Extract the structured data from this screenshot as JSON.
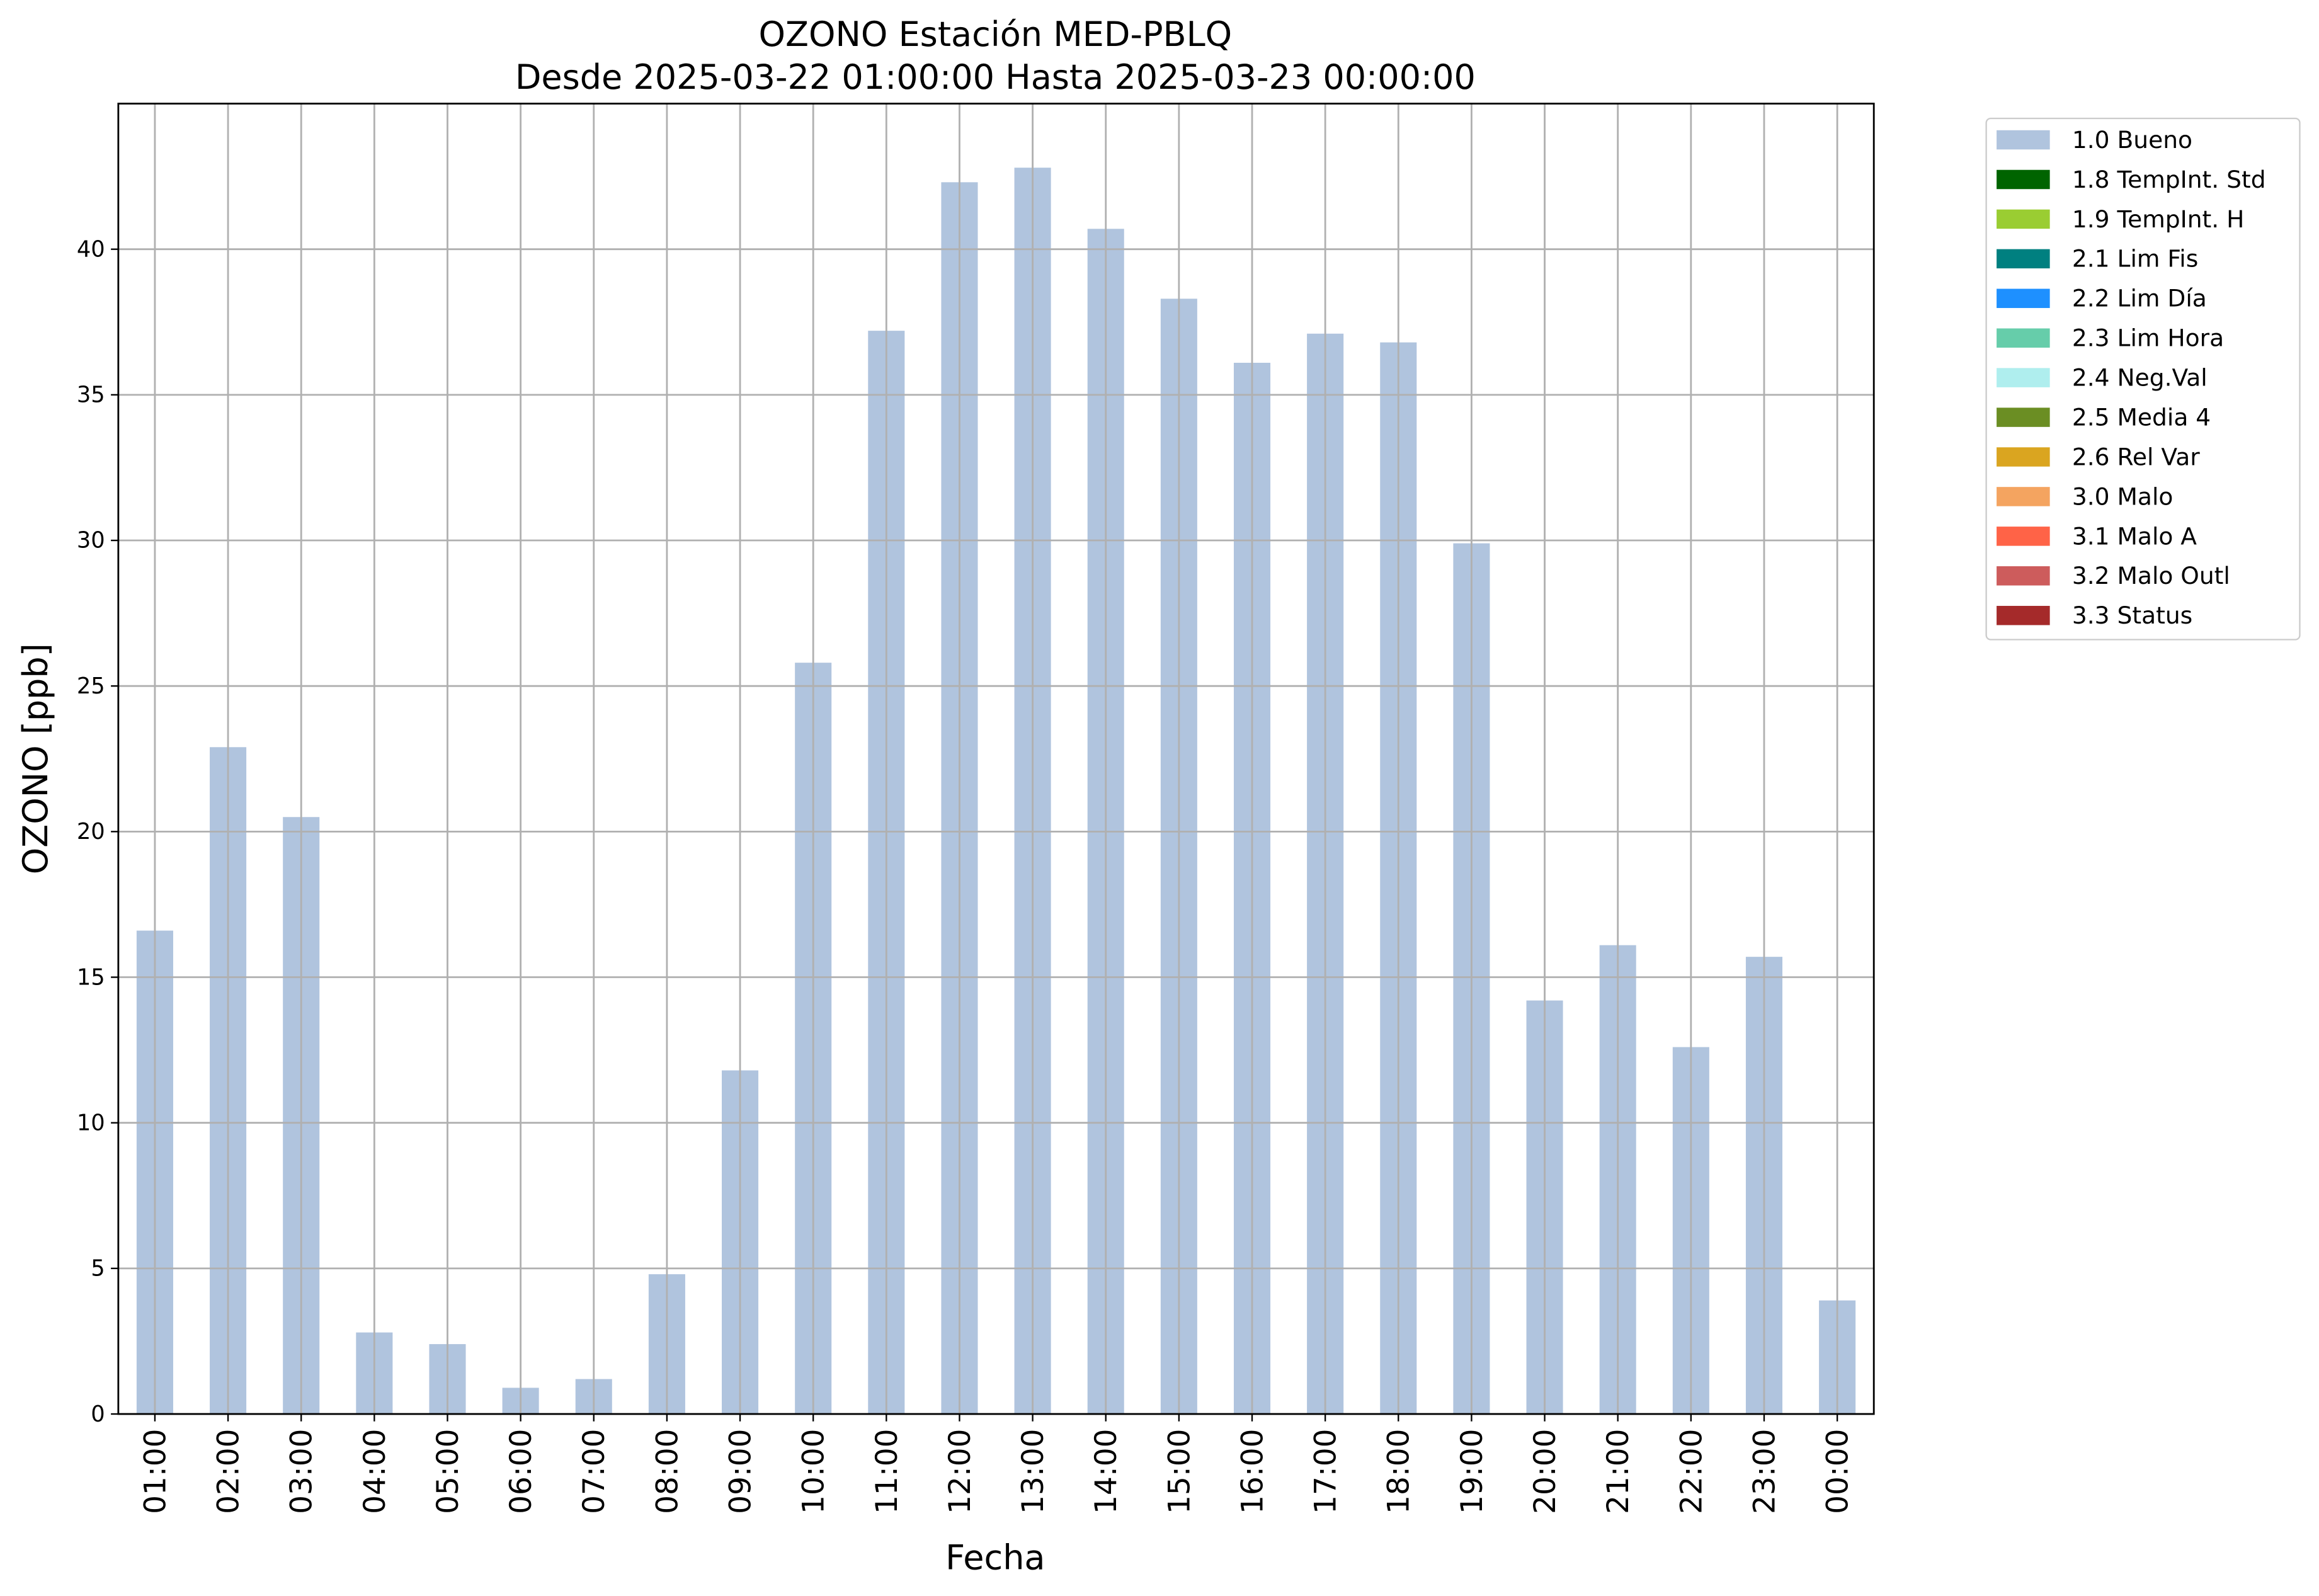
{
  "chart_data": {
    "type": "bar",
    "stacked": true,
    "title": "OZONO Estación MED-PBLQ",
    "subtitle": "Desde 2025-03-22 01:00:00 Hasta 2025-03-23 00:00:00",
    "x_label": "Fecha",
    "y_label": "OZONO [ppb]",
    "categories": [
      "01:00",
      "02:00",
      "03:00",
      "04:00",
      "05:00",
      "06:00",
      "07:00",
      "08:00",
      "09:00",
      "10:00",
      "11:00",
      "12:00",
      "13:00",
      "14:00",
      "15:00",
      "16:00",
      "17:00",
      "18:00",
      "19:00",
      "20:00",
      "21:00",
      "22:00",
      "23:00",
      "00:00"
    ],
    "series": [
      {
        "name": "1.0 Bueno",
        "color": "#b0c4de",
        "values": [
          16.6,
          22.9,
          20.5,
          2.8,
          2.4,
          0.9,
          1.2,
          4.8,
          11.8,
          25.8,
          37.2,
          42.3,
          42.8,
          40.7,
          38.3,
          36.1,
          37.1,
          36.8,
          29.9,
          14.2,
          16.1,
          12.6,
          15.7,
          3.9
        ]
      },
      {
        "name": "1.8 TempInt. Std",
        "color": "#006400",
        "values": [
          null,
          null,
          null,
          null,
          null,
          null,
          null,
          null,
          null,
          null,
          null,
          null,
          null,
          null,
          null,
          null,
          null,
          null,
          null,
          null,
          null,
          null,
          null,
          null
        ]
      },
      {
        "name": "1.9 TempInt. H",
        "color": "#9acd32",
        "values": [
          null,
          null,
          null,
          null,
          null,
          null,
          null,
          null,
          null,
          null,
          null,
          null,
          null,
          null,
          null,
          null,
          null,
          null,
          null,
          null,
          null,
          null,
          null,
          null
        ]
      },
      {
        "name": "2.1 Lim Fis",
        "color": "#008080",
        "values": [
          null,
          null,
          null,
          null,
          null,
          null,
          null,
          null,
          null,
          null,
          null,
          null,
          null,
          null,
          null,
          null,
          null,
          null,
          null,
          null,
          null,
          null,
          null,
          null
        ]
      },
      {
        "name": "2.2 Lim Día",
        "color": "#1e90ff",
        "values": [
          null,
          null,
          null,
          null,
          null,
          null,
          null,
          null,
          null,
          null,
          null,
          null,
          null,
          null,
          null,
          null,
          null,
          null,
          null,
          null,
          null,
          null,
          null,
          null
        ]
      },
      {
        "name": "2.3 Lim Hora",
        "color": "#66cdaa",
        "values": [
          null,
          null,
          null,
          null,
          null,
          null,
          null,
          null,
          null,
          null,
          null,
          null,
          null,
          null,
          null,
          null,
          null,
          null,
          null,
          null,
          null,
          null,
          null,
          null
        ]
      },
      {
        "name": "2.4 Neg.Val",
        "color": "#afeeee",
        "values": [
          null,
          null,
          null,
          null,
          null,
          null,
          null,
          null,
          null,
          null,
          null,
          null,
          null,
          null,
          null,
          null,
          null,
          null,
          null,
          null,
          null,
          null,
          null,
          null
        ]
      },
      {
        "name": "2.5 Media 4",
        "color": "#6b8e23",
        "values": [
          null,
          null,
          null,
          null,
          null,
          null,
          null,
          null,
          null,
          null,
          null,
          null,
          null,
          null,
          null,
          null,
          null,
          null,
          null,
          null,
          null,
          null,
          null,
          null
        ]
      },
      {
        "name": "2.6 Rel Var",
        "color": "#daa520",
        "values": [
          null,
          null,
          null,
          null,
          null,
          null,
          null,
          null,
          null,
          null,
          null,
          null,
          null,
          null,
          null,
          null,
          null,
          null,
          null,
          null,
          null,
          null,
          null,
          null
        ]
      },
      {
        "name": "3.0 Malo",
        "color": "#f4a460",
        "values": [
          null,
          null,
          null,
          null,
          null,
          null,
          null,
          null,
          null,
          null,
          null,
          null,
          null,
          null,
          null,
          null,
          null,
          null,
          null,
          null,
          null,
          null,
          null,
          null
        ]
      },
      {
        "name": "3.1 Malo A",
        "color": "#ff6347",
        "values": [
          null,
          null,
          null,
          null,
          null,
          null,
          null,
          null,
          null,
          null,
          null,
          null,
          null,
          null,
          null,
          null,
          null,
          null,
          null,
          null,
          null,
          null,
          null,
          null
        ]
      },
      {
        "name": "3.2 Malo Outl",
        "color": "#cd5c5c",
        "values": [
          null,
          null,
          null,
          null,
          null,
          null,
          null,
          null,
          null,
          null,
          null,
          null,
          null,
          null,
          null,
          null,
          null,
          null,
          null,
          null,
          null,
          null,
          null,
          null
        ]
      },
      {
        "name": "3.3 Status",
        "color": "#a52a2a",
        "values": [
          null,
          null,
          null,
          null,
          null,
          null,
          null,
          null,
          null,
          null,
          null,
          null,
          null,
          null,
          null,
          null,
          null,
          null,
          null,
          null,
          null,
          null,
          null,
          null
        ]
      }
    ],
    "ylim": [
      0,
      45
    ],
    "yticks": [
      0,
      5,
      10,
      15,
      20,
      25,
      30,
      35,
      40
    ],
    "grid": true,
    "legend": "outside upper right"
  }
}
